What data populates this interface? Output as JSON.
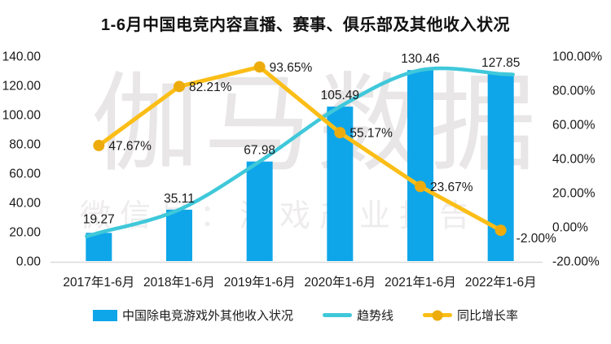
{
  "title": "1-6月中国电竞内容直播、赛事、俱乐部及其他收入状况",
  "watermark": {
    "main": "伽马数据",
    "sub": "微信号：游戏产业报告"
  },
  "colors": {
    "bar": "#0EA6E9",
    "trend": "#3FC8DA",
    "growth_line": "#FBBE17",
    "growth_marker": "#EDAC0C",
    "axis_text": "#1a1a1a",
    "baseline": "#d9d9d9",
    "watermark_main": "#e8e6e6",
    "watermark_sub": "#eeecec"
  },
  "chart_data": {
    "type": "combo-bar-line",
    "title": "1-6月中国电竞内容直播、赛事、俱乐部及其他收入状况",
    "categories": [
      "2017年1-6月",
      "2018年1-6月",
      "2019年1-6月",
      "2020年1-6月",
      "2021年1-6月",
      "2022年1-6月"
    ],
    "series": [
      {
        "name": "中国除电竞游戏外其他收入状况",
        "type": "bar",
        "axis": "left",
        "values": [
          19.27,
          35.11,
          67.98,
          105.49,
          130.46,
          127.85
        ],
        "labels": [
          "19.27",
          "35.11",
          "67.98",
          "105.49",
          "130.46",
          "127.85"
        ]
      },
      {
        "name": "趋势线",
        "type": "line-smooth",
        "axis": "left",
        "values": [
          19.27,
          35.11,
          67.98,
          105.49,
          130.46,
          127.85
        ]
      },
      {
        "name": "同比增长率",
        "type": "line-marker",
        "axis": "right",
        "values": [
          47.67,
          82.21,
          93.65,
          55.17,
          23.67,
          -2.0
        ],
        "labels": [
          "47.67%",
          "82.21%",
          "93.65%",
          "55.17%",
          "23.67%",
          "-2.00%"
        ]
      }
    ],
    "left_axis": {
      "min": 0,
      "max": 140,
      "step": 20,
      "ticks": [
        "140.00",
        "120.00",
        "100.00",
        "80.00",
        "60.00",
        "40.00",
        "20.00",
        "0.00"
      ]
    },
    "right_axis": {
      "min": -20,
      "max": 100,
      "step": 20,
      "ticks": [
        "100.00%",
        "80.00%",
        "60.00%",
        "40.00%",
        "20.00%",
        "0.00%",
        "-20.00%"
      ]
    },
    "grid": "off",
    "legend_position": "bottom"
  }
}
